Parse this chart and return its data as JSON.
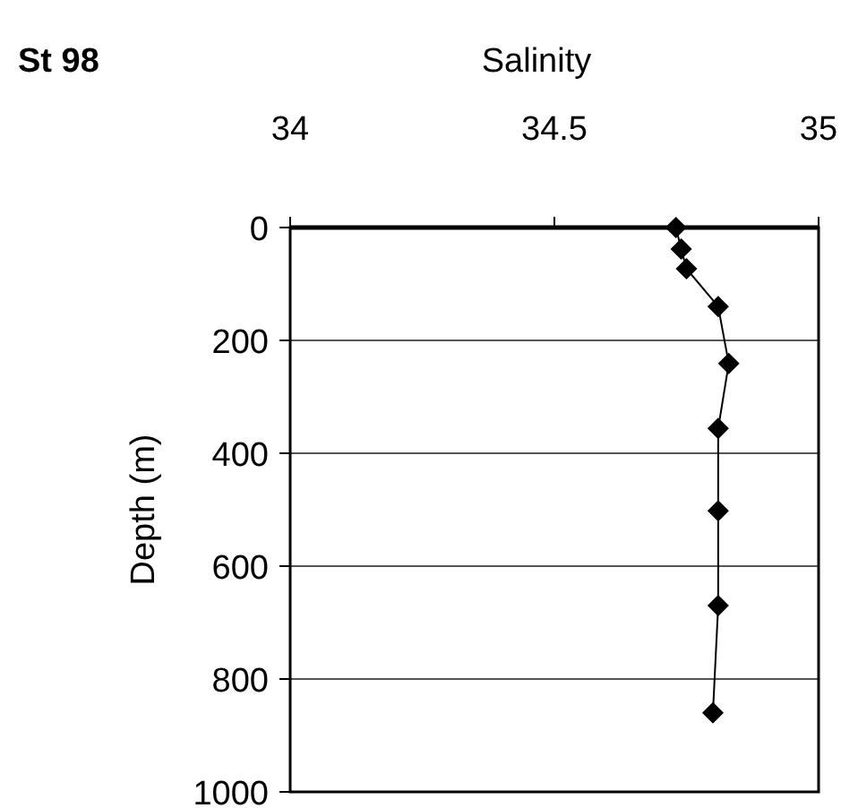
{
  "chart_data": {
    "type": "line",
    "title": "St 98",
    "xlabel": "Salinity",
    "ylabel": "Depth (m)",
    "x": [
      34.73,
      34.74,
      34.75,
      34.81,
      34.83,
      34.81,
      34.81,
      34.81,
      34.8
    ],
    "series": [
      {
        "color": "#000000",
        "values": [
          0,
          38,
          73,
          140,
          241,
          356,
          502,
          670,
          860
        ]
      }
    ],
    "xlim": [
      34,
      35
    ],
    "xticks": [
      34,
      34.5,
      35
    ],
    "ylim": [
      1000,
      0
    ],
    "yticks": [
      0,
      200,
      400,
      600,
      800,
      1000
    ],
    "grid": "y",
    "marker": "diamond",
    "line_style": "solid"
  }
}
